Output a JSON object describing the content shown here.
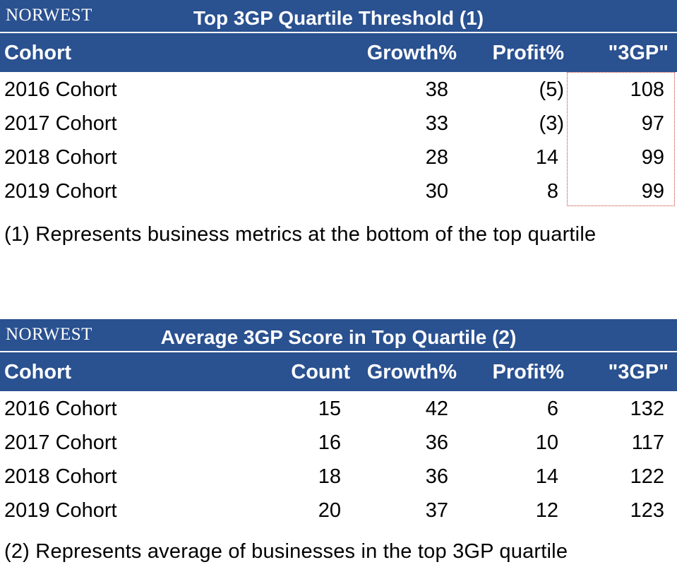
{
  "table1": {
    "brand": "NORWEST",
    "title": "Top 3GP Quartile Threshold (1)",
    "headers": {
      "cohort": "Cohort",
      "growth": "Growth%",
      "profit": "Profit%",
      "gp3": "\"3GP\""
    },
    "rows": [
      {
        "cohort": "2016 Cohort",
        "growth": "38",
        "profit": "(5)",
        "gp3": "108"
      },
      {
        "cohort": "2017 Cohort",
        "growth": "33",
        "profit": "(3)",
        "gp3": "97"
      },
      {
        "cohort": "2018 Cohort",
        "growth": "28",
        "profit": "14",
        "gp3": "99"
      },
      {
        "cohort": "2019 Cohort",
        "growth": "30",
        "profit": "8",
        "gp3": "99"
      }
    ],
    "footnote": "(1) Represents business metrics at the bottom of the top quartile"
  },
  "table2": {
    "brand": "NORWEST",
    "title": "Average 3GP Score in Top Quartile (2)",
    "headers": {
      "cohort": "Cohort",
      "count": "Count",
      "growth": "Growth%",
      "profit": "Profit%",
      "gp3": "\"3GP\""
    },
    "rows": [
      {
        "cohort": "2016 Cohort",
        "count": "15",
        "growth": "42",
        "profit": "6",
        "gp3": "132"
      },
      {
        "cohort": "2017 Cohort",
        "count": "16",
        "growth": "36",
        "profit": "10",
        "gp3": "117"
      },
      {
        "cohort": "2018 Cohort",
        "count": "18",
        "growth": "36",
        "profit": "14",
        "gp3": "122"
      },
      {
        "cohort": "2019 Cohort",
        "count": "20",
        "growth": "37",
        "profit": "12",
        "gp3": "123"
      }
    ],
    "footnote": "(2) Represents average of businesses in the top 3GP quartile"
  },
  "colors": {
    "header_bg": "#2a5190",
    "header_text": "#ffffff",
    "highlight_border": "#c0392b"
  }
}
